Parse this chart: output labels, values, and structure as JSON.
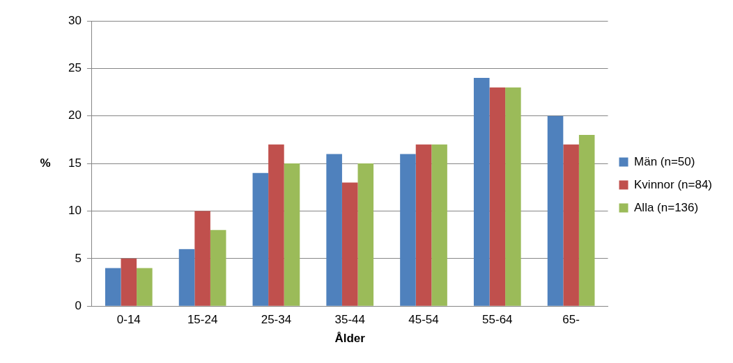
{
  "chart_data": {
    "type": "bar",
    "xlabel": "Ålder",
    "ylabel": "%",
    "categories": [
      "0-14",
      "15-24",
      "25-34",
      "35-44",
      "45-54",
      "55-64",
      "65-"
    ],
    "series": [
      {
        "name": "Män (n=50)",
        "color": "#4f81bd",
        "values": [
          4,
          6,
          14,
          16,
          16,
          24,
          20
        ]
      },
      {
        "name": "Kvinnor (n=84)",
        "color": "#c0504d",
        "values": [
          5,
          10,
          17,
          13,
          17,
          23,
          17
        ]
      },
      {
        "name": "Alla (n=136)",
        "color": "#9bbb59",
        "values": [
          4,
          8,
          15,
          15,
          17,
          23,
          18
        ]
      }
    ],
    "ylim": [
      0,
      30
    ],
    "yticks": [
      0,
      5,
      10,
      15,
      20,
      25,
      30
    ],
    "grid": "y",
    "legend": "right"
  }
}
